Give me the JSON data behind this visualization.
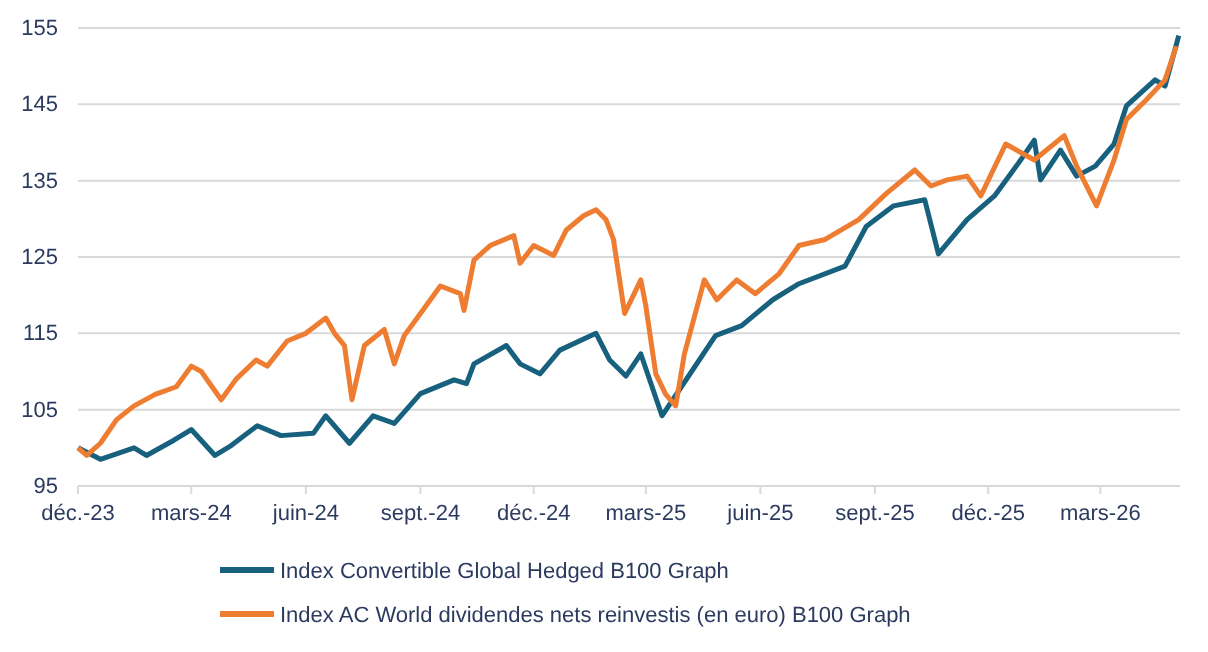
{
  "chart_data": {
    "type": "line",
    "legend": "bottom",
    "grid": "y",
    "xlim": [
      "2023-12-01",
      "2026-05-04"
    ],
    "xticks": [
      {
        "value": "2023-12-01",
        "label": "déc.-23"
      },
      {
        "value": "2024-03-01",
        "label": "mars-24"
      },
      {
        "value": "2024-06-01",
        "label": "juin-24"
      },
      {
        "value": "2024-09-01",
        "label": "sept.-24"
      },
      {
        "value": "2024-12-01",
        "label": "déc.-24"
      },
      {
        "value": "2025-03-01",
        "label": "mars-25"
      },
      {
        "value": "2025-06-01",
        "label": "juin-25"
      },
      {
        "value": "2025-09-01",
        "label": "sept.-25"
      },
      {
        "value": "2025-12-01",
        "label": "déc.-25"
      },
      {
        "value": "2026-03-01",
        "label": "mars-26"
      }
    ],
    "ylim": [
      95,
      155
    ],
    "yticks": [
      95,
      105,
      115,
      125,
      135,
      145,
      155
    ],
    "series": [
      {
        "name": "Index Convertible Global Hedged B100 Graph",
        "color": "#17607e",
        "x": [
          "2023-12-01",
          "2023-12-19",
          "2024-01-15",
          "2024-01-25",
          "2024-02-16",
          "2024-03-01",
          "2024-03-20",
          "2024-04-02",
          "2024-04-23",
          "2024-05-12",
          "2024-06-07",
          "2024-06-17",
          "2024-07-06",
          "2024-07-25",
          "2024-08-11",
          "2024-09-01",
          "2024-09-28",
          "2024-10-08",
          "2024-10-14",
          "2024-11-09",
          "2024-11-20",
          "2024-12-06",
          "2024-12-22",
          "2025-01-20",
          "2025-01-31",
          "2025-02-13",
          "2025-02-25",
          "2025-03-14",
          "2025-03-30",
          "2025-04-26",
          "2025-05-17",
          "2025-06-11",
          "2025-07-02",
          "2025-08-08",
          "2025-08-25",
          "2025-09-16",
          "2025-10-11",
          "2025-10-22",
          "2025-11-14",
          "2025-12-06",
          "2025-12-27",
          "2026-01-07",
          "2026-01-12",
          "2026-01-28",
          "2026-02-10",
          "2026-02-25",
          "2026-03-12",
          "2026-03-22",
          "2026-04-14",
          "2026-04-22",
          "2026-05-03"
        ],
        "values": [
          100,
          98.5,
          100,
          99,
          101,
          102.4,
          99,
          100.3,
          102.9,
          101.6,
          101.9,
          104.2,
          100.6,
          104.2,
          103.2,
          107.1,
          108.9,
          108.4,
          111,
          113.4,
          111,
          109.7,
          112.8,
          115,
          111.5,
          109.4,
          112.3,
          104.2,
          108.1,
          114.7,
          116,
          119.4,
          121.5,
          123.8,
          129,
          131.7,
          132.5,
          125.4,
          129.9,
          133,
          137.7,
          140.3,
          135.1,
          139,
          135.6,
          136.9,
          139.8,
          144.8,
          148.2,
          147.4,
          154
        ]
      },
      {
        "name": "Index AC World dividendes nets reinvestis (en euro) B100 Graph",
        "color": "#ee7d31",
        "x": [
          "2023-12-01",
          "2023-12-08",
          "2023-12-19",
          "2024-01-01",
          "2024-01-15",
          "2024-02-01",
          "2024-02-18",
          "2024-03-01",
          "2024-03-09",
          "2024-03-25",
          "2024-04-06",
          "2024-04-22",
          "2024-05-01",
          "2024-05-17",
          "2024-06-01",
          "2024-06-17",
          "2024-06-24",
          "2024-07-02",
          "2024-07-08",
          "2024-07-18",
          "2024-08-03",
          "2024-08-11",
          "2024-08-19",
          "2024-09-01",
          "2024-09-17",
          "2024-10-03",
          "2024-10-06",
          "2024-10-14",
          "2024-10-27",
          "2024-11-15",
          "2024-11-20",
          "2024-12-01",
          "2024-12-17",
          "2024-12-27",
          "2025-01-10",
          "2025-01-20",
          "2025-01-28",
          "2025-02-03",
          "2025-02-12",
          "2025-02-25",
          "2025-03-01",
          "2025-03-09",
          "2025-03-17",
          "2025-03-25",
          "2025-04-01",
          "2025-04-17",
          "2025-04-27",
          "2025-05-13",
          "2025-05-28",
          "2025-06-16",
          "2025-07-02",
          "2025-07-23",
          "2025-08-19",
          "2025-09-10",
          "2025-10-03",
          "2025-10-16",
          "2025-10-29",
          "2025-11-14",
          "2025-11-25",
          "2025-12-15",
          "2026-01-07",
          "2026-01-31",
          "2026-02-10",
          "2026-02-26",
          "2026-03-12",
          "2026-03-22",
          "2026-04-07",
          "2026-04-22",
          "2026-05-01"
        ],
        "values": [
          100,
          99,
          100.6,
          103.7,
          105.5,
          107,
          108,
          110.7,
          110,
          106.3,
          109,
          111.5,
          110.7,
          114,
          115,
          117,
          115,
          113.4,
          106.3,
          113.4,
          115.5,
          111,
          114.7,
          117.6,
          121.2,
          120.2,
          118,
          124.6,
          126.5,
          127.8,
          124.2,
          126.5,
          125.2,
          128.5,
          130.4,
          131.2,
          129.9,
          127.3,
          117.6,
          122,
          118.6,
          109.7,
          107,
          105.5,
          112.3,
          122,
          119.4,
          122,
          120.2,
          122.8,
          126.5,
          127.3,
          129.9,
          133.3,
          136.4,
          134.3,
          135.1,
          135.6,
          133,
          139.8,
          137.7,
          140.9,
          136.9,
          131.7,
          137.7,
          143,
          145.6,
          148.2,
          152.6
        ]
      }
    ]
  }
}
